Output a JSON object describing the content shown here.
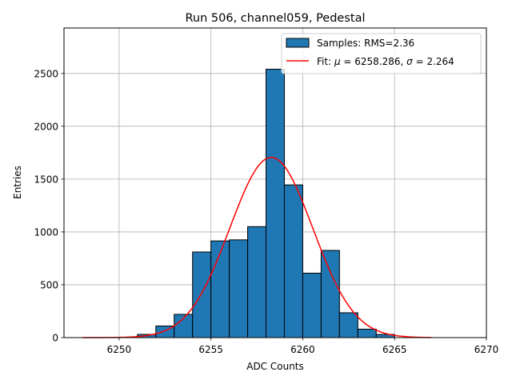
{
  "chart_data": {
    "type": "bar",
    "title": "Run 506, channel059, Pedestal",
    "xlabel": "ADC Counts",
    "ylabel": "Entries",
    "xlim": [
      6247,
      6270
    ],
    "ylim": [
      0,
      2930
    ],
    "xticks": [
      6250,
      6255,
      6260,
      6265,
      6270
    ],
    "yticks": [
      0,
      500,
      1000,
      1500,
      2000,
      2500
    ],
    "grid": true,
    "legend_position": "top-right",
    "bin_width": 1,
    "histogram": {
      "name": "Samples: RMS=2.36",
      "color": "#1f77b4",
      "bin_starts": [
        6251,
        6252,
        6253,
        6254,
        6255,
        6256,
        6257,
        6258,
        6259,
        6260,
        6261,
        6262,
        6263,
        6264
      ],
      "values": [
        30,
        110,
        220,
        810,
        915,
        925,
        1050,
        2540,
        1445,
        610,
        825,
        235,
        80,
        30
      ]
    },
    "fit": {
      "name": "Fit: μ = 6258.286, σ = 2.264",
      "name_prefix": "Fit: ",
      "mu_symbol": "μ",
      "mu_text": " = 6258.286, ",
      "sigma_symbol": "σ",
      "sigma_text": " = 2.264",
      "color": "#ff0000",
      "mu": 6258.286,
      "sigma": 2.264,
      "amplitude": 1705,
      "x_range": [
        6248,
        6267
      ]
    }
  }
}
